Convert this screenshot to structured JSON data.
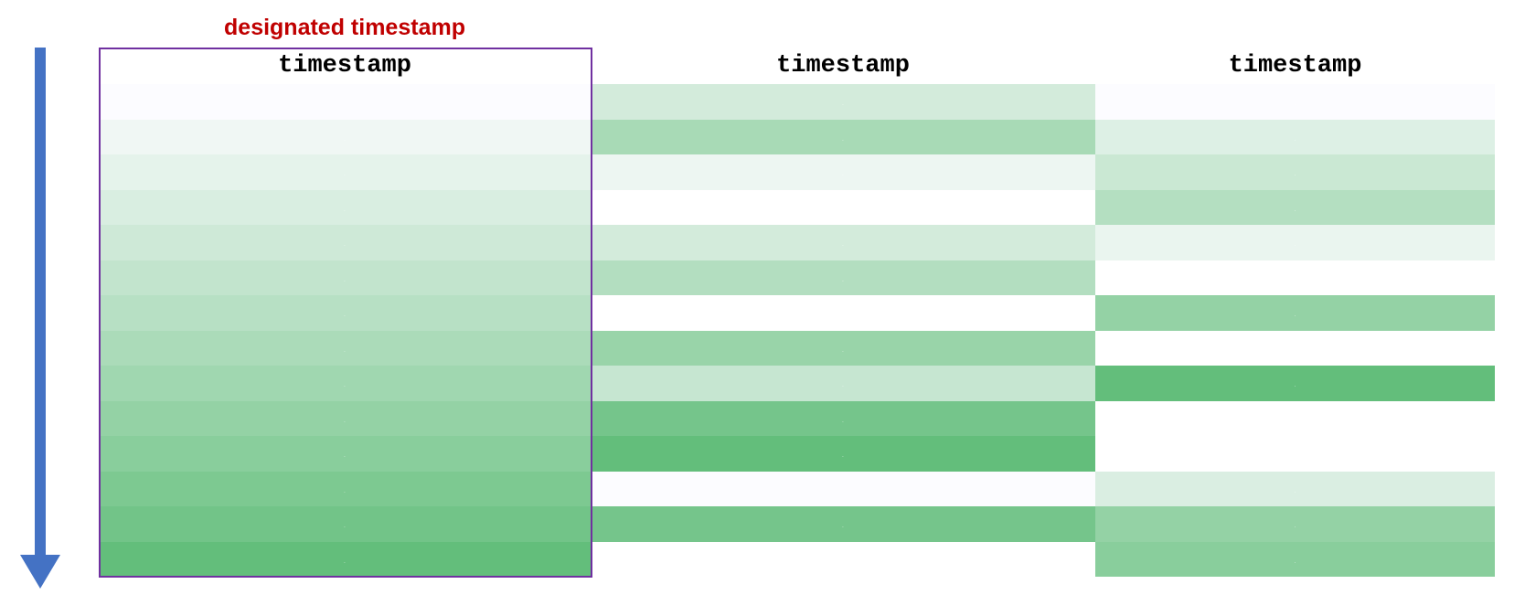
{
  "designated_label": "designated timestamp",
  "colors": {
    "arrow": "#4472c4",
    "designated_border": "#7030a0",
    "designated_label": "#c00000",
    "scale_low": "#fcfcff",
    "scale_high": "#63be7b"
  },
  "columns": [
    {
      "header": "timestamp",
      "designated": true,
      "cells": [
        {
          "level": 0.0
        },
        {
          "level": 0.08
        },
        {
          "level": 0.15
        },
        {
          "level": 0.23
        },
        {
          "level": 0.3
        },
        {
          "level": 0.38
        },
        {
          "level": 0.45
        },
        {
          "level": 0.53
        },
        {
          "level": 0.6
        },
        {
          "level": 0.68
        },
        {
          "level": 0.75
        },
        {
          "level": 0.83
        },
        {
          "level": 0.9
        },
        {
          "level": 1.0
        }
      ]
    },
    {
      "header": "timestamp",
      "designated": false,
      "cells": [
        {
          "level": 0.27
        },
        {
          "level": 0.55
        },
        {
          "level": 0.1
        },
        {
          "level": null
        },
        {
          "level": 0.27
        },
        {
          "level": 0.48
        },
        {
          "level": null
        },
        {
          "level": 0.65
        },
        {
          "level": 0.35
        },
        {
          "level": 0.88
        },
        {
          "level": 1.0
        },
        {
          "level": 0.0
        },
        {
          "level": 0.88
        },
        {
          "level": null
        }
      ]
    },
    {
      "header": "timestamp",
      "designated": false,
      "cells": [
        {
          "level": 0.0
        },
        {
          "level": 0.2
        },
        {
          "level": 0.33
        },
        {
          "level": 0.47
        },
        {
          "level": 0.12
        },
        {
          "level": null
        },
        {
          "level": 0.68
        },
        {
          "level": null
        },
        {
          "level": 1.0
        },
        {
          "level": null
        },
        {
          "level": null
        },
        {
          "level": 0.22
        },
        {
          "level": 0.68
        },
        {
          "level": 0.75
        }
      ]
    }
  ]
}
